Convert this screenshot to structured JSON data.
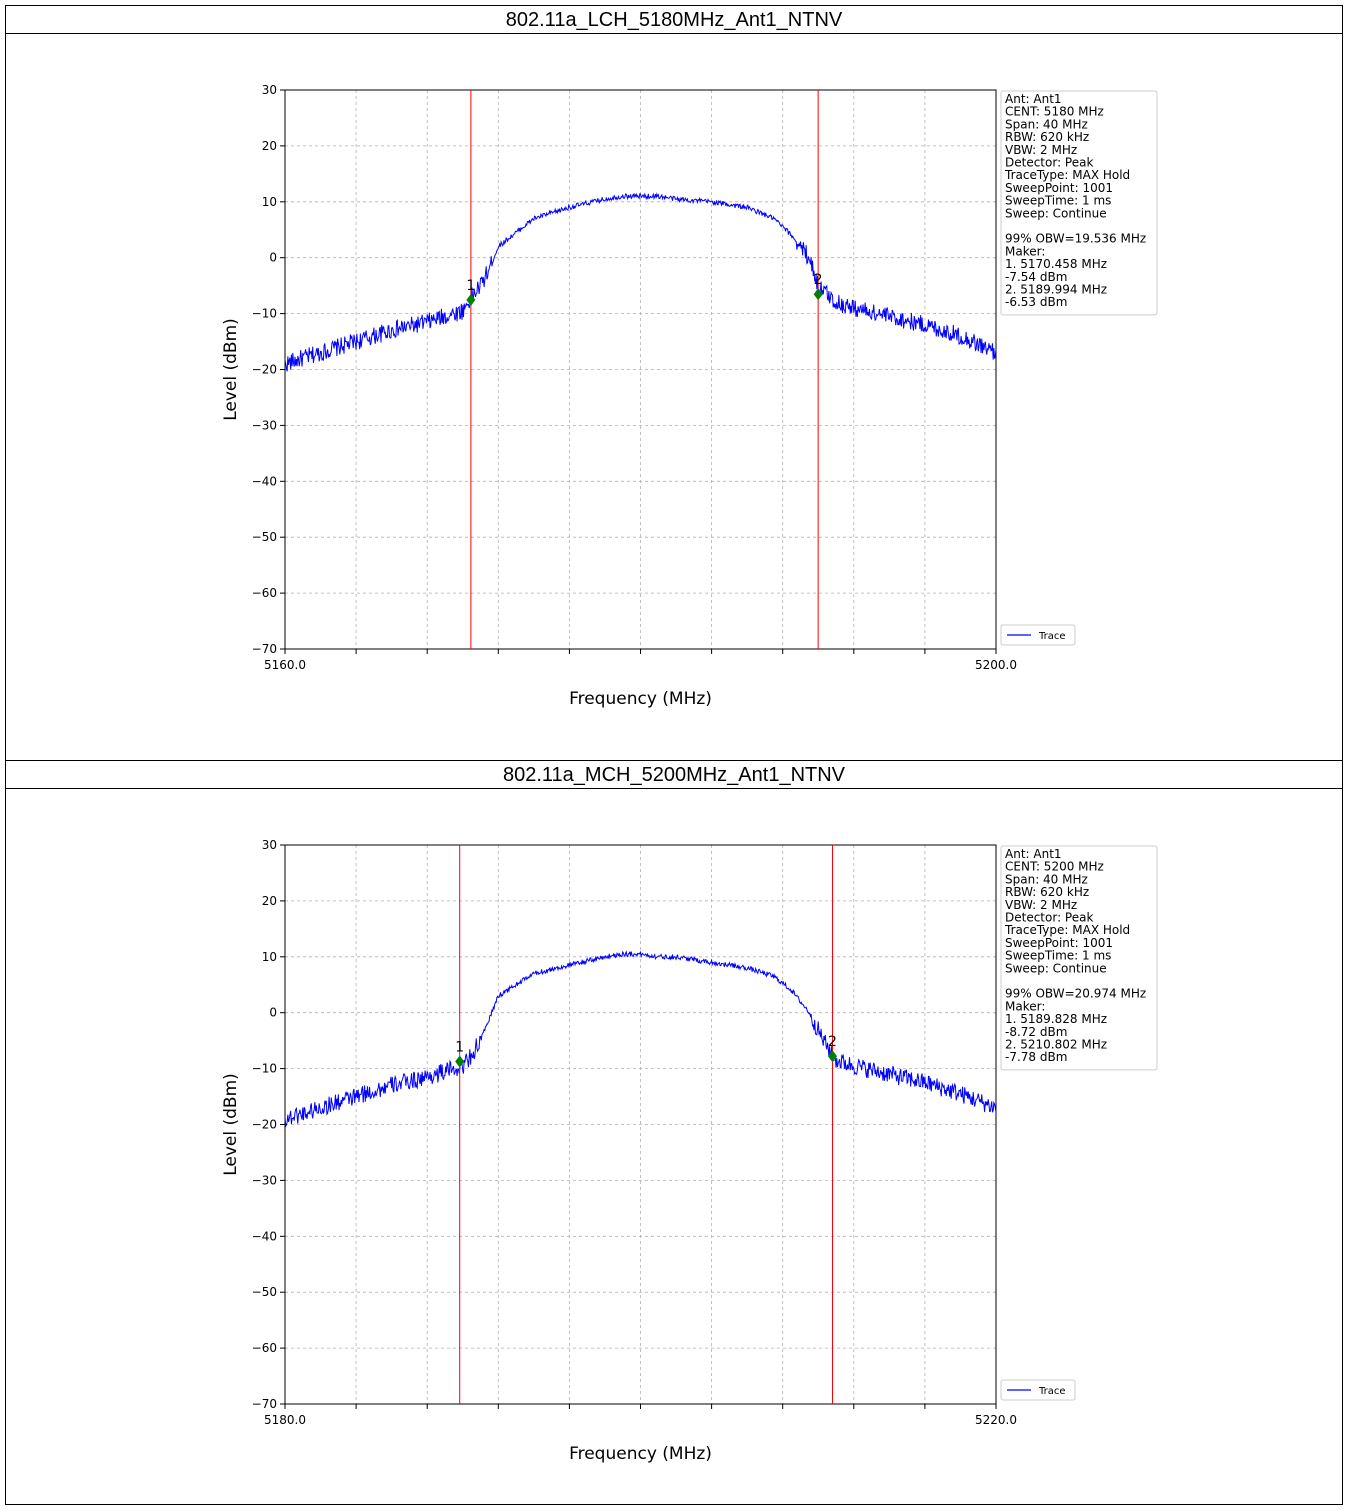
{
  "panels": [
    {
      "title": "802.11a_LCH_5180MHz_Ant1_NTNV",
      "info_lines": [
        "Ant: Ant1",
        "CENT: 5180 MHz",
        "Span: 40 MHz",
        "RBW: 620 kHz",
        "VBW: 2 MHz",
        "Detector: Peak",
        "TraceType: MAX Hold",
        "SweepPoint: 1001",
        "SweepTime: 1 ms",
        "Sweep: Continue",
        "",
        "99% OBW=19.536 MHz",
        "Maker:",
        "1. 5170.458 MHz",
        "   -7.54 dBm",
        "2. 5189.994 MHz",
        "   -6.53 dBm"
      ]
    },
    {
      "title": "802.11a_MCH_5200MHz_Ant1_NTNV",
      "info_lines": [
        "Ant: Ant1",
        "CENT: 5200 MHz",
        "Span: 40 MHz",
        "RBW: 620 kHz",
        "VBW: 2 MHz",
        "Detector: Peak",
        "TraceType: MAX Hold",
        "SweepPoint: 1001",
        "SweepTime: 1 ms",
        "Sweep: Continue",
        "",
        "99% OBW=20.974 MHz",
        "Maker:",
        "1. 5189.828 MHz",
        "   -8.72 dBm",
        "2. 5210.802 MHz",
        "   -7.78 dBm"
      ]
    }
  ],
  "colors": {
    "trace": "#0000ff",
    "marker_line": "#ff0000",
    "marker": "#008000",
    "grid": "#b0b0b0"
  },
  "chart_data": [
    {
      "type": "line",
      "title": "802.11a_LCH_5180MHz_Ant1_NTNV",
      "xlabel": "Frequency (MHz)",
      "ylabel": "Level (dBm)",
      "xlim": [
        5160,
        5200
      ],
      "ylim": [
        -70,
        30
      ],
      "x_tick_labels": [
        "5160.0",
        "5200.0"
      ],
      "y_ticks": [
        30,
        20,
        10,
        0,
        -10,
        -20,
        -30,
        -40,
        -50,
        -60,
        -70
      ],
      "grid": true,
      "legend": {
        "position": "bottom-right",
        "entries": [
          "Trace"
        ]
      },
      "series": [
        {
          "name": "Trace",
          "x": [
            5160,
            5162,
            5164,
            5166,
            5168,
            5169,
            5170,
            5170.5,
            5171,
            5171.5,
            5172,
            5174,
            5176,
            5178,
            5179,
            5180,
            5181,
            5182,
            5184,
            5186,
            5187.5,
            5188.5,
            5189.5,
            5190,
            5191,
            5192,
            5194,
            5196,
            5198,
            5200
          ],
          "y": [
            -19,
            -17,
            -15,
            -13,
            -11.5,
            -10.5,
            -9.5,
            -7,
            -5,
            -2,
            2,
            7,
            9,
            10.5,
            11,
            11,
            11,
            10.5,
            10,
            9,
            7,
            4,
            0,
            -5,
            -8,
            -9,
            -10.5,
            -12,
            -14,
            -17
          ]
        }
      ],
      "markers": [
        {
          "label": "1",
          "x": 5170.458,
          "y": -7.54
        },
        {
          "label": "2",
          "x": 5189.994,
          "y": -6.53
        }
      ]
    },
    {
      "type": "line",
      "title": "802.11a_MCH_5200MHz_Ant1_NTNV",
      "xlabel": "Frequency (MHz)",
      "ylabel": "Level (dBm)",
      "xlim": [
        5180,
        5220
      ],
      "ylim": [
        -70,
        30
      ],
      "x_tick_labels": [
        "5180.0",
        "5220.0"
      ],
      "y_ticks": [
        30,
        20,
        10,
        0,
        -10,
        -20,
        -30,
        -40,
        -50,
        -60,
        -70
      ],
      "grid": true,
      "legend": {
        "position": "bottom-right",
        "entries": [
          "Trace"
        ]
      },
      "series": [
        {
          "name": "Trace",
          "x": [
            5180,
            5182,
            5184,
            5186,
            5188,
            5189,
            5190,
            5190.5,
            5191,
            5191.5,
            5192,
            5194,
            5196,
            5198,
            5199,
            5200,
            5201,
            5202,
            5204,
            5206,
            5207.5,
            5208.5,
            5209.5,
            5210.3,
            5211,
            5212,
            5214,
            5216,
            5218,
            5220
          ],
          "y": [
            -19,
            -17,
            -15,
            -13,
            -11.5,
            -10.5,
            -9.5,
            -7.5,
            -5,
            -1,
            3,
            7,
            8.5,
            10,
            10.5,
            10.5,
            10,
            10,
            9,
            8,
            6.5,
            4,
            0,
            -5,
            -8.5,
            -9.5,
            -11,
            -12.5,
            -14.5,
            -17
          ]
        }
      ],
      "markers": [
        {
          "label": "1",
          "x": 5189.828,
          "y": -8.72
        },
        {
          "label": "2",
          "x": 5210.802,
          "y": -7.78
        }
      ]
    }
  ]
}
